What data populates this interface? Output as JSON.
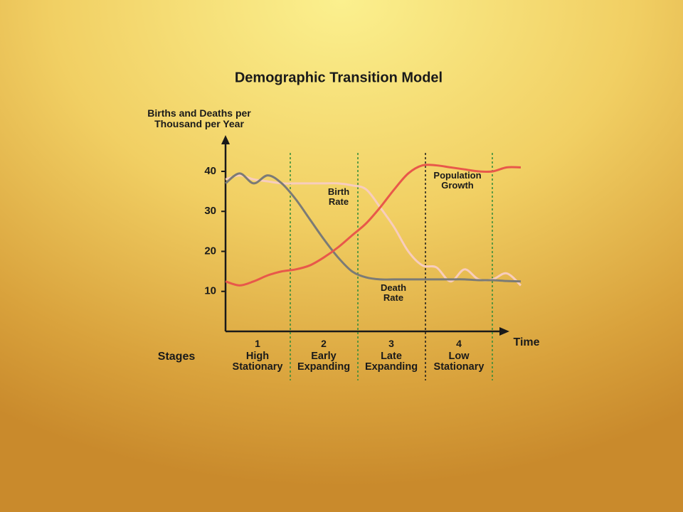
{
  "chart_data": {
    "type": "line",
    "title": "Demographic Transition Model",
    "y_label": "Births and Deaths per Thousand per Year",
    "x_label": "Time",
    "categories": [
      null,
      null,
      null,
      null,
      null,
      null,
      null,
      null,
      null,
      null,
      null,
      null,
      null,
      null,
      null,
      null,
      null,
      null,
      null,
      null,
      null,
      null
    ],
    "series": [
      {
        "name": "Birth Rate",
        "color": "#f8cdbd",
        "values": [
          38,
          39,
          38,
          37.5,
          37,
          37,
          37,
          37,
          37,
          36.5,
          35.5,
          31,
          26,
          20,
          16.5,
          16,
          12.5,
          15.5,
          13,
          13,
          14.5,
          11.5
        ]
      },
      {
        "name": "Death Rate",
        "color": "#7b7b76",
        "values": [
          37,
          39.5,
          37,
          39,
          37,
          33,
          28,
          23,
          18.5,
          15,
          13.5,
          13,
          13,
          13,
          13,
          13,
          13,
          13,
          12.8,
          12.8,
          12.6,
          12.5
        ]
      },
      {
        "name": "Population Growth",
        "color": "#e8584a",
        "values": [
          12.5,
          11.5,
          12.5,
          14,
          15,
          15.5,
          16.5,
          18.5,
          21,
          24,
          27,
          31,
          35.5,
          39.5,
          41.5,
          41.5,
          41,
          40.5,
          40,
          40,
          41,
          41
        ]
      }
    ],
    "ylim": [
      0,
      48
    ],
    "yticks": [
      10,
      20,
      30,
      40
    ],
    "stages_label": "Stages",
    "stages": [
      {
        "number": "1",
        "name": "High Stationary"
      },
      {
        "number": "2",
        "name": "Early Expanding"
      },
      {
        "number": "3",
        "name": "Late Expanding"
      },
      {
        "number": "4",
        "name": "Low Stationary"
      }
    ]
  }
}
